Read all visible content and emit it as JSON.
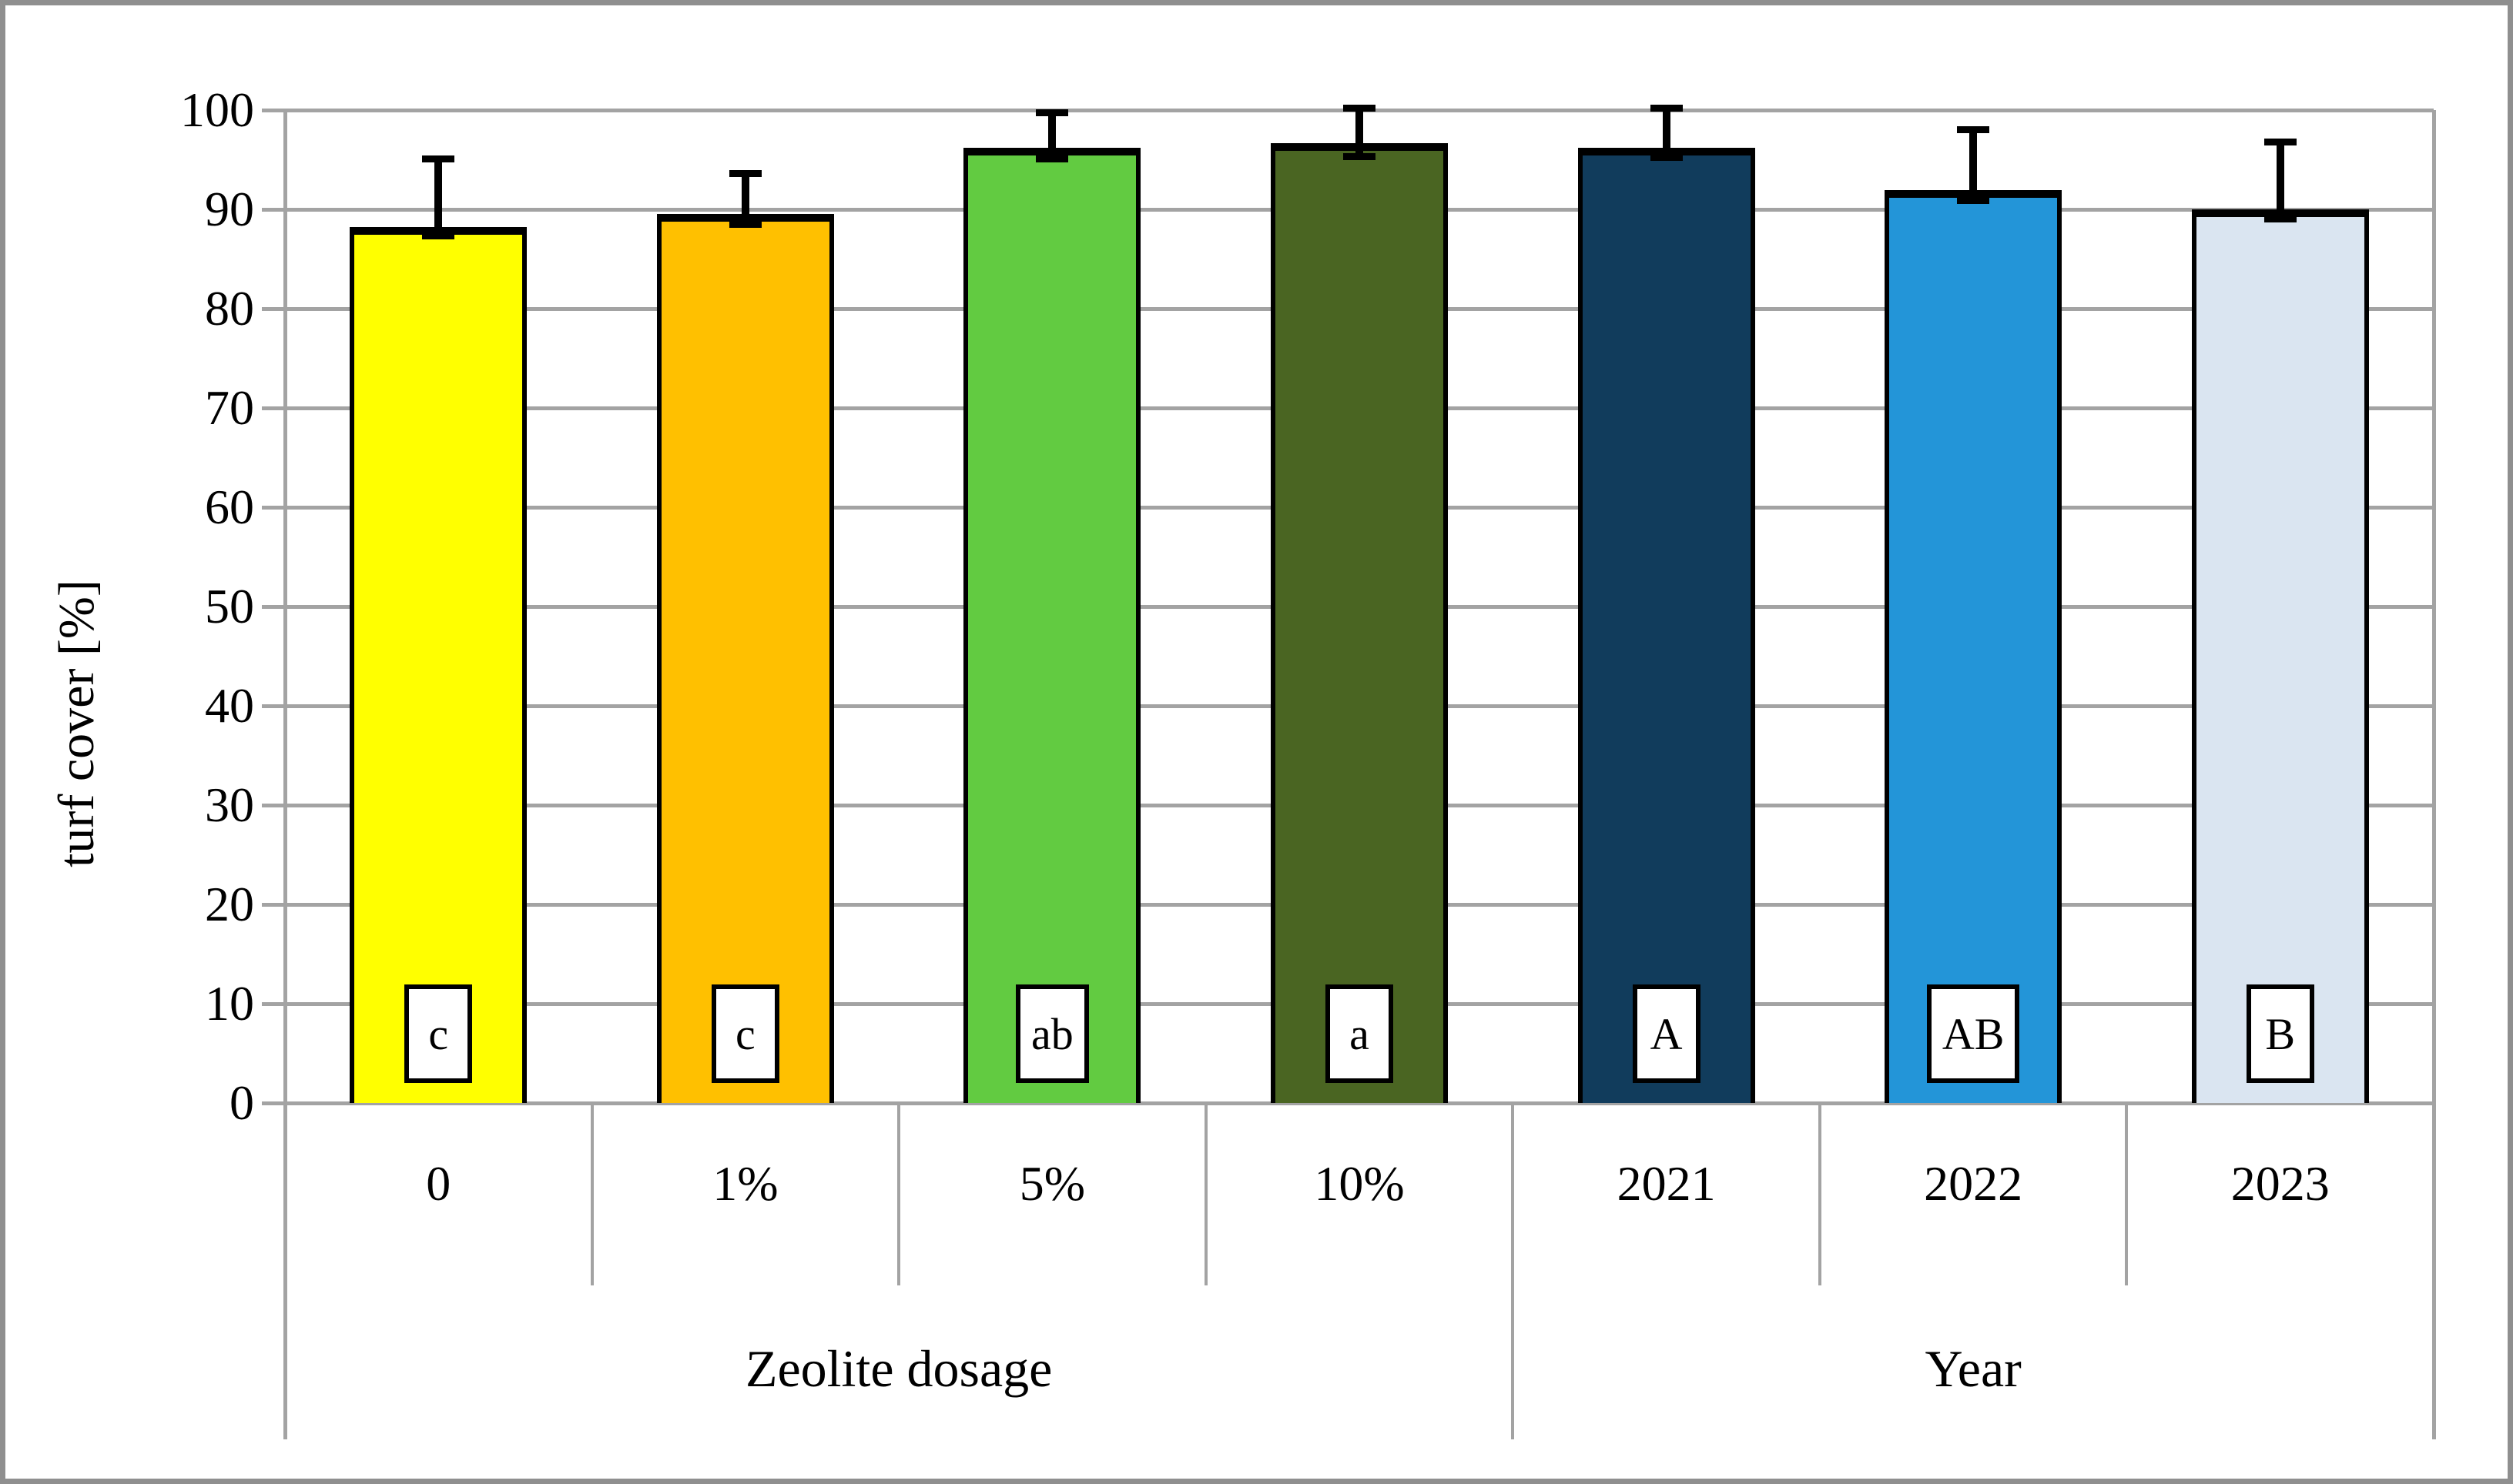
{
  "figure": {
    "background": "#ffffff",
    "border_color": "#8f8f8f"
  },
  "chart_data": {
    "type": "bar",
    "title": "",
    "xlabel": "",
    "ylabel": "turf cover [%]",
    "ylim": [
      0,
      100
    ],
    "y_tick_step": 10,
    "y_ticks": [
      "0",
      "10",
      "20",
      "30",
      "40",
      "50",
      "60",
      "70",
      "80",
      "90",
      "100"
    ],
    "grid": true,
    "legend": false,
    "categories": [
      "0",
      "1%",
      "5%",
      "10%",
      "2021",
      "2022",
      "2023"
    ],
    "series": [
      {
        "name": "turf cover",
        "values": [
          88.2,
          89.5,
          96.2,
          96.7,
          96.2,
          91.9,
          90.0
        ]
      }
    ],
    "error_bars": {
      "upper_to": [
        95.1,
        93.6,
        99.7,
        100.2,
        100.2,
        98.0,
        96.8
      ],
      "lower_cap_to": [
        87.3,
        88.5,
        95.1,
        95.3,
        95.2,
        90.9,
        89.0
      ]
    },
    "significance_letters": [
      "c",
      "c",
      "ab",
      "a",
      "A",
      "AB",
      "B"
    ],
    "bar_colors": [
      "#ffff00",
      "#ffc000",
      "#62cb41",
      "#4a6522",
      "#113c5c",
      "#2395d8",
      "#dae5f1"
    ],
    "group_labels": [
      {
        "label": "Zeolite dosage",
        "start": 0,
        "end": 3
      },
      {
        "label": "Year",
        "start": 4,
        "end": 6
      }
    ],
    "colors": {
      "grid": "#a3a3a3",
      "axis": "#a3a3a3",
      "bar_border": "#000000",
      "error_bar": "#000000",
      "letter_box_bg": "#ffffff",
      "letter_box_border": "#000000"
    }
  }
}
